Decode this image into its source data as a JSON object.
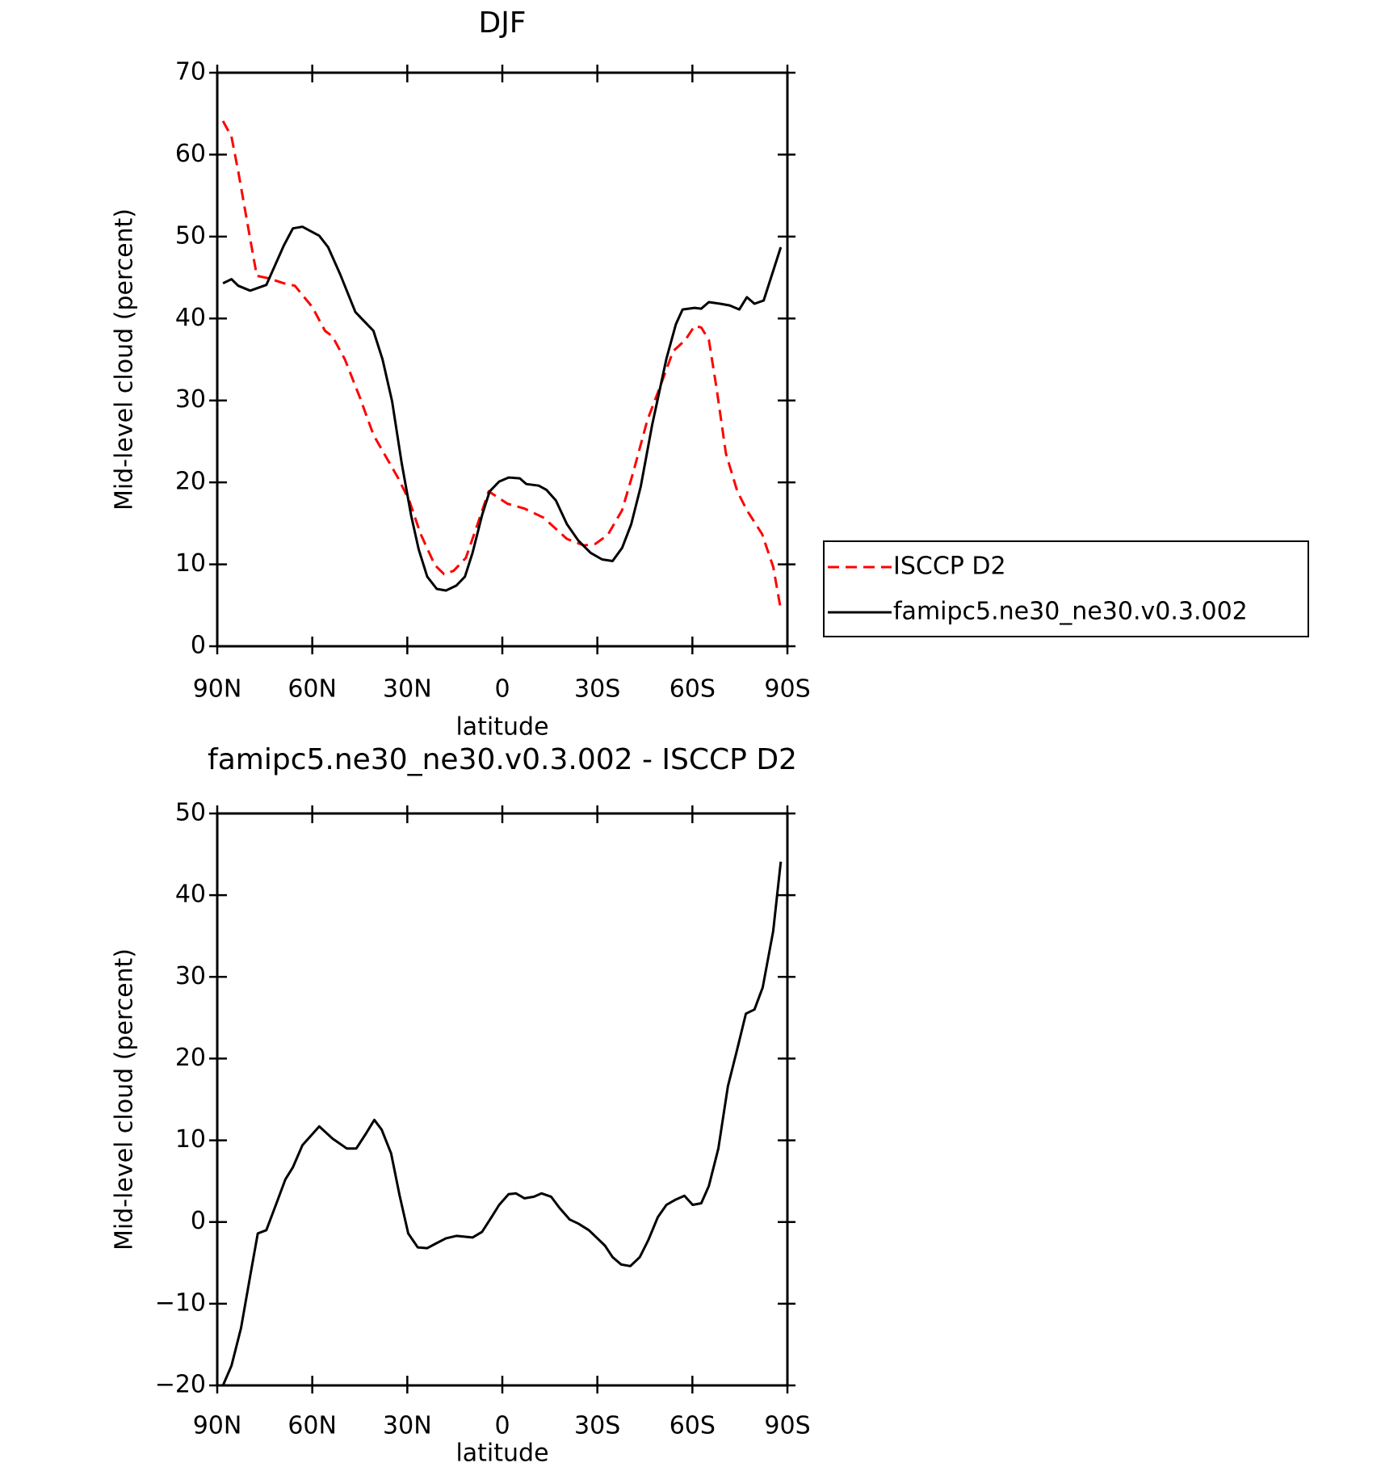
{
  "chart_data": [
    {
      "type": "line",
      "title": "DJF",
      "xlabel": "latitude",
      "ylabel": "Mid-level cloud (percent)",
      "xlim": [
        90,
        -90
      ],
      "ylim": [
        0,
        70
      ],
      "xticks": [
        {
          "value": 90,
          "label": "90N"
        },
        {
          "value": 60,
          "label": "60N"
        },
        {
          "value": 30,
          "label": "30N"
        },
        0,
        {
          "value": -30,
          "label": "30S"
        },
        {
          "value": -60,
          "label": "60S"
        },
        {
          "value": -90,
          "label": "90S"
        }
      ],
      "yticks": [
        0,
        10,
        20,
        30,
        40,
        50,
        60,
        70
      ],
      "legend": "right",
      "series": [
        {
          "name": "ISCCP D2",
          "color": "#ff0000",
          "dashed": true,
          "x": [
            88.2,
            85.5,
            83.4,
            80,
            77.5,
            73.6,
            69,
            65.5,
            60,
            56,
            53.6,
            49.7,
            45,
            40.7,
            33,
            29.4,
            25.8,
            21.3,
            18.4,
            15.4,
            11.5,
            7.9,
            4.3,
            -1.6,
            -7,
            -13,
            -20.4,
            -25.8,
            -29.4,
            -33.3,
            -37.8,
            -41.3,
            -45.8,
            -50.3,
            -53.9,
            -57.8,
            -60.7,
            -62.8,
            -65.2,
            -67.6,
            -70.6,
            -74.2,
            -77.2,
            -82,
            -85.5,
            -87.9
          ],
          "values": [
            64.1,
            62.2,
            58,
            50.6,
            45.2,
            44.9,
            44.3,
            44,
            41.4,
            38.5,
            37.8,
            35,
            30.4,
            25.8,
            20.6,
            17.8,
            13.7,
            9.9,
            8.8,
            9.2,
            10.8,
            14.8,
            18.9,
            17.4,
            16.8,
            15.7,
            13.1,
            12.3,
            12.5,
            13.6,
            16.6,
            21.2,
            27.6,
            32.2,
            36,
            37.4,
            39.1,
            38.9,
            37.4,
            31.6,
            23.5,
            18.9,
            16.6,
            13.7,
            9.7,
            4.5
          ]
        },
        {
          "name": "famipc5.ne30_ne30.v0.3.002",
          "color": "#000000",
          "dashed": false,
          "x": [
            88.2,
            85.5,
            83.4,
            79.6,
            74.5,
            69,
            66.1,
            63.1,
            57.8,
            55,
            51.2,
            46.4,
            43.7,
            40.7,
            37.8,
            34.8,
            31.8,
            28.8,
            26.4,
            23.7,
            20.7,
            17.8,
            14.5,
            11.8,
            9.4,
            6.4,
            4,
            1,
            -2,
            -5.5,
            -7.6,
            -11.5,
            -13.9,
            -16.9,
            -20.4,
            -24,
            -27.9,
            -31.5,
            -34.8,
            -37.8,
            -40.7,
            -43.7,
            -47.3,
            -51.8,
            -54.8,
            -56.9,
            -60.7,
            -62.8,
            -65.2,
            -68.8,
            -71.8,
            -74.8,
            -77.2,
            -79.6,
            -82.5,
            -87.9
          ],
          "values": [
            44.3,
            44.8,
            44,
            43.4,
            44.1,
            48.9,
            51,
            51.2,
            50.1,
            48.7,
            45.4,
            40.8,
            39.7,
            38.5,
            35,
            29.9,
            22.4,
            16,
            11.8,
            8.5,
            7,
            6.8,
            7.4,
            8.5,
            11.4,
            16,
            18.9,
            20.1,
            20.6,
            20.5,
            19.8,
            19.6,
            19.1,
            17.8,
            14.9,
            12.9,
            11.4,
            10.6,
            10.4,
            12,
            14.9,
            19.5,
            27,
            35.1,
            39.3,
            41.1,
            41.3,
            41.2,
            42,
            41.8,
            41.6,
            41.1,
            42.6,
            41.8,
            42.2,
            48.7
          ]
        }
      ]
    },
    {
      "type": "line",
      "title": "famipc5.ne30_ne30.v0.3.002 - ISCCP D2",
      "xlabel": "latitude",
      "ylabel": "Mid-level cloud (percent)",
      "xlim": [
        90,
        -90
      ],
      "ylim": [
        -20,
        50
      ],
      "xticks": [
        {
          "value": 90,
          "label": "90N"
        },
        {
          "value": 60,
          "label": "60N"
        },
        {
          "value": 30,
          "label": "30N"
        },
        0,
        {
          "value": -30,
          "label": "30S"
        },
        {
          "value": -60,
          "label": "60S"
        },
        {
          "value": -90,
          "label": "90S"
        }
      ],
      "yticks": [
        {
          "value": -20,
          "label": "−20"
        },
        {
          "value": -10,
          "label": "−10"
        },
        0,
        10,
        20,
        30,
        40,
        50
      ],
      "series": [
        {
          "color": "#000000",
          "dashed": false,
          "x": [
            88.2,
            85.5,
            82.5,
            79.6,
            77.2,
            74.5,
            71.5,
            68.5,
            66.1,
            63.1,
            57.8,
            53.6,
            49.1,
            46.1,
            43.1,
            40.4,
            38.1,
            35.1,
            32.4,
            29.7,
            26.7,
            23.7,
            21.3,
            17.8,
            14.5,
            9.4,
            6.4,
            3.4,
            1,
            -2,
            -4.3,
            -7,
            -10,
            -12.4,
            -15.4,
            -18.1,
            -21.3,
            -24,
            -27.3,
            -30,
            -32.4,
            -34.8,
            -37.5,
            -40.4,
            -43.4,
            -46.1,
            -49.1,
            -51.8,
            -54.5,
            -57.5,
            -60.1,
            -62.8,
            -65.2,
            -68.2,
            -71.2,
            -74.2,
            -76.9,
            -79.6,
            -82.2,
            -85.5,
            -87.9
          ],
          "values": [
            -20,
            -17.6,
            -13,
            -6.6,
            -1.4,
            -1,
            2.1,
            5.2,
            6.7,
            9.4,
            11.7,
            10.2,
            9,
            9,
            10.8,
            12.5,
            11.3,
            8.4,
            3.2,
            -1.4,
            -3.1,
            -3.2,
            -2.7,
            -2,
            -1.7,
            -1.9,
            -1.2,
            0.6,
            2.1,
            3.4,
            3.5,
            2.9,
            3.1,
            3.5,
            3.1,
            1.7,
            0.3,
            -0.2,
            -1,
            -2,
            -2.9,
            -4.3,
            -5.2,
            -5.4,
            -4.3,
            -2.2,
            0.6,
            2.1,
            2.7,
            3.2,
            2.1,
            2.3,
            4.4,
            9,
            16.6,
            21.2,
            25.5,
            26,
            28.7,
            35.6,
            44.1
          ]
        }
      ]
    }
  ]
}
